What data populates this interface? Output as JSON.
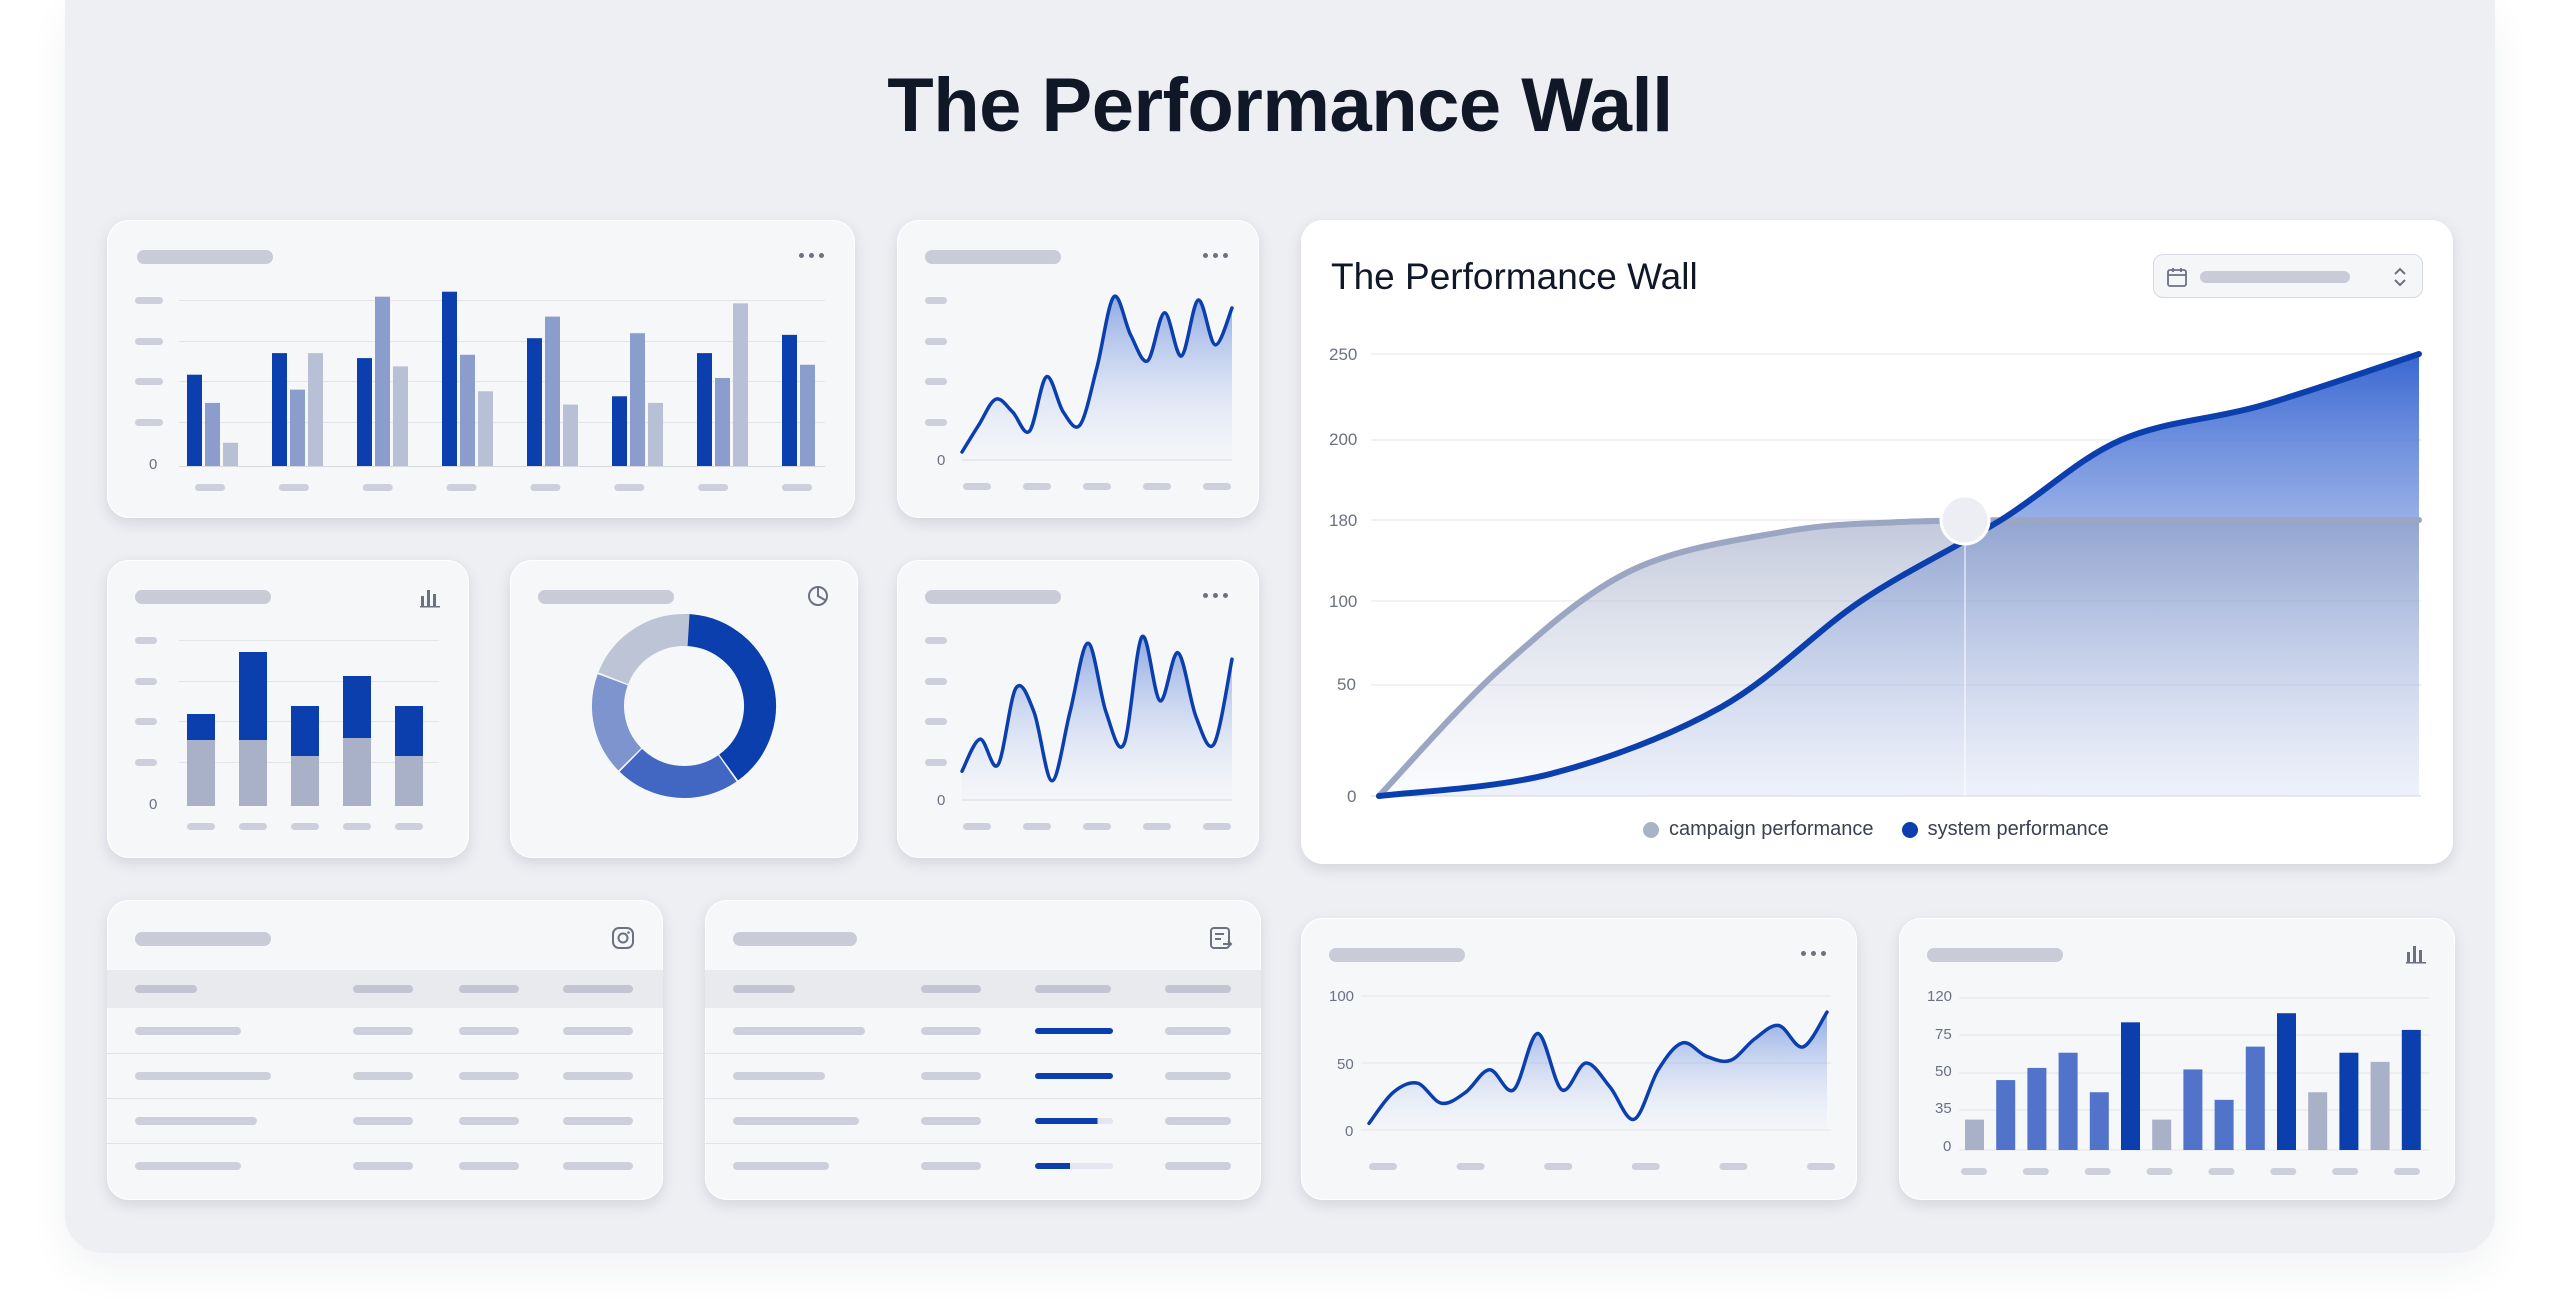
{
  "page_title": "The Performance Wall",
  "big_chart": {
    "title": "The Performance Wall",
    "y_ticks": [
      "250",
      "200",
      "180",
      "100",
      "50",
      "0"
    ],
    "legend": [
      {
        "label": "campaign performance",
        "color": "#a9b3c8"
      },
      {
        "label": "system performance",
        "color": "#0b3fae"
      }
    ]
  },
  "mini_line_a": {
    "y_ticks": [
      "0"
    ]
  },
  "mini_line_b": {
    "y_ticks": [
      "0"
    ]
  },
  "mini_bar_a": {
    "y_ticks": [
      "0"
    ]
  },
  "mini_stack": {
    "y_ticks": [
      "0"
    ]
  },
  "bottom_line": {
    "y_ticks": [
      "100",
      "50",
      "0"
    ]
  },
  "bottom_bar": {
    "y_ticks": [
      "120",
      "75",
      "50",
      "35",
      "0"
    ]
  },
  "icons": {
    "more": "more-horizontal-icon",
    "bar_chart": "bar-chart-icon",
    "pie_clock": "pie-chart-icon",
    "instagram": "instagram-icon",
    "export": "export-icon",
    "calendar": "calendar-icon",
    "chevron": "chevron-updown-icon"
  },
  "colors": {
    "accent": "#0b3fae",
    "muted": "#a9b3c8"
  }
}
